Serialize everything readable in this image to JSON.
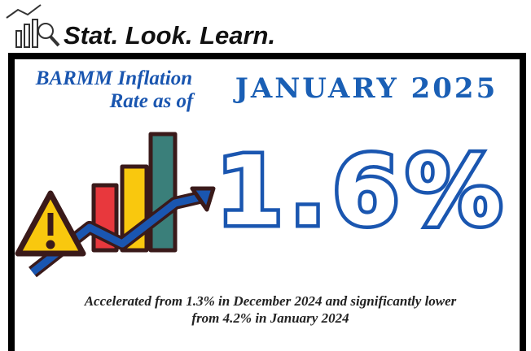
{
  "header": {
    "tagline": "Stat. Look. Learn."
  },
  "headline": {
    "lead": [
      "BARMM Inflation",
      "Rate as of"
    ],
    "period": "JANUARY 2025"
  },
  "rate": "1.6%",
  "note": [
    "Accelerated from  1.3% in December 2024 and significantly lower",
    "from 4.2%  in  January 2024"
  ]
}
